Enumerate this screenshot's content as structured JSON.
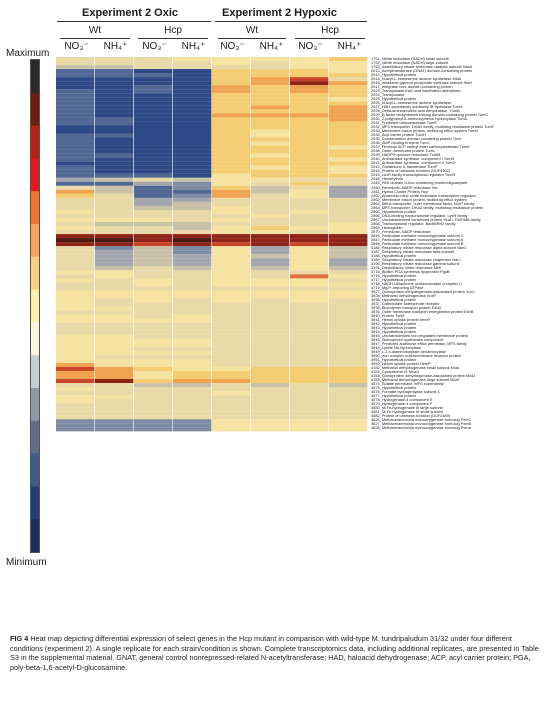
{
  "header": {
    "oxic_title": "Experiment 2 Oxic",
    "hypoxic_title": "Experiment 2 Hypoxic",
    "groups": [
      "Wt",
      "Hcp",
      "Wt",
      "Hcp"
    ],
    "conditions": [
      "NO₃⁻",
      "NH₄⁺",
      "NO₃⁻",
      "NH₄⁺",
      "NO₃⁻",
      "NH₄⁺",
      "NO₃⁻",
      "NH₄⁺"
    ]
  },
  "scale": {
    "max_label": "Maximum",
    "min_label": "Minimum",
    "colors": [
      "#2a2a2a",
      "#6b1f0f",
      "#b8230f",
      "#e31a1c",
      "#f4762e",
      "#f7a35c",
      "#fad27e",
      "#fdf0b0",
      "#fbf5d9",
      "#c7ccd6",
      "#8f98a8",
      "#5f6f8a",
      "#3e5a8e",
      "#233e7a",
      "#1d2f5e"
    ]
  },
  "palette": [
    "#1f2f62",
    "#2d4a86",
    "#4f6994",
    "#7c8aa3",
    "#a4a6ae",
    "#c9c0a8",
    "#e8d9a7",
    "#f6e3a1",
    "#f4cc72",
    "#f0a452",
    "#e0703a",
    "#c9452a",
    "#8e2418",
    "#4a1a10"
  ],
  "genes": [
    "1751_Nitrite reductase (NADH) small subunit",
    "1752_Nitrite reductase (NADH) large subunit",
    "1753_Assimilatory nitrate reductase catalytic subunit NasA",
    "2012_Acetyltransferase (GNAT) domain-containing protein",
    "2013_Hypothetical protein",
    "2014_N-acyl-L-homoserine lactone synthetase MbaI",
    "2016_Imidazole glycerol phosphate synthase subunit HisH",
    "2017_Integrase core domain-containing protein",
    "2023_Transposase InsO and inactivated derivatives",
    "2024_Transposase",
    "2025_Hypothetical protein",
    "2026_N-acyl-L-homoserine lactone synthetase",
    "2027_HAD-superfamily subfamily IB hydrolase TumA",
    "2028_Delta-aminolevulinic acid dehydratase, TumB",
    "2029_A-factor biosynthesis hotdog domain-containing protein TumC",
    "2030_2-polyprenyl-6-methoxyphenol hydroxylase TumD",
    "2031_Predicted oxidoreductase TumE",
    "2032_MFS transporter, DHA2 family, multidrug resistance protein TumF",
    "2033_Membrane fusion protein, multidrug efflux system TumG",
    "2034_Acyl carrier protein TumH",
    "2035_Condensation domain-containing protein TumI",
    "2036_AMP-binding enzyme TumJ",
    "2037_Pimeloyl-ACP methyl ester carboxylesterase TumK",
    "2038_Outer membrane protein TumL",
    "2039_NADPH quinone reductase TumM",
    "2040_Anthranilate synthase, component I TumN",
    "2041_Anthranilate synthase, component II TumO",
    "2042_Glutathione S-transferase TumP",
    "2043_Protein of unknown function (DUF4902)",
    "2044_LuxR family transcriptional regulator TumR",
    "2448_Hemerythrin",
    "2449_PAS domain S-box-containing protein/diguanylate",
    "2450_Ferredoxin-NADP reductase Hcr",
    "2451_Hybrid Cluster Protein Hcp",
    "2452_Anaerobic nitric oxide reductase transcription regulator",
    "2562_Membrane fusion protein, multidrug efflux system",
    "2563_Efflux transporter, outer membrane factor NodT family",
    "2564_MFS transporter, DHA2 family, multidrug resistance protein",
    "2565_Hypothetical protein",
    "2566_DNA-binding transcriptional regulator, LysR family",
    "2567_Uncharacterized conserved protein YeaO, DUF488 family",
    "2568_Transcriptional regulator, BadM/Rrf2 family",
    "2569_Hemoglobin",
    "2570_Ferredoxin-NADP reductase",
    "2846_Particulate methane monooxygenase subunit C",
    "2847_Particulate methane monooxygenase subunit A",
    "2848_Particulate methane monooxygenase subunit B",
    "3186_Respiratory nitrate reductase alpha subunit NarG",
    "3187_Respiratory nitrate reductase beta subunit",
    "3188_Hypothetical protein",
    "3189_Respiratory nitrate reductase chaperone NarJ",
    "3190_Respiratory nitrate reductase gamma subunit",
    "3191_Dissimilatory nitrite reductase NirK",
    "3715_Biofilm PGA synthesis lipoprotein PgaB",
    "3716_Hypothetical protein",
    "3717_Hypothetical protein",
    "3718_NADH-Ubiquinone oxidoreductase (complex I)",
    "3719_Mg2+-importing ATPase",
    "3927_Quinoprotein dehydrogenase-associated protein XoxJ",
    "3928_Methanol dehydrogenase XoxF",
    "3936_Hypothetical protein",
    "3937_Catecholate siderophore receptor",
    "3938_Biopolymer transport protein ExbD",
    "3939_Outer membrane transport energization protein ExbB",
    "3940_Protein TonB",
    "3941_Hemin uptake protein hemP",
    "3942_Hypothetical protein",
    "3943_Hypothetical protein",
    "3944_Hypothetical protein",
    "3945_Uncharacterized iron-regulated membrane protein",
    "3946_Siderophore synthetase component",
    "3947_Predicted arabinose efflux permease, MFS family",
    "3948_Lysine N6-hydroxylase",
    "3949_L-2,4-diaminobutyrate decarboxylase",
    "3950_Iron complex outermembrane receptor protein",
    "3951_Hypothetical protein",
    "3952_Hemin uptake protein HemP",
    "4152_Methanol dehydrogenase small subunit MxaI",
    "4153_Cytochrome cL MxaG",
    "4154_Quinoprotein dehydrogenase-associated protein MxaJ",
    "4155_Methanol dehydrogenase large subunit MxaF",
    "4574_Sulfate permease, MFS superfamily",
    "4575_Hypothetical protein",
    "4576_Formate hydrogenlyase subunit 4",
    "4577_Hypothetical protein",
    "4578_Hydrogenase-4 component E",
    "4579_Hydrogenase-4 component F",
    "4580_Ni,Fe-hydrogenase III large subunit",
    "4581_Ni,Fe-hydrogenase III small subunit",
    "4582_Protein of unknown function (DUF2480)",
    "4626_Methane/ammonia monooxygenase homolog PxmC",
    "4627_Methane/ammonia monooxygenase homolog PxmB",
    "4628_Methane/ammonia monooxygenase homolog PxmA"
  ],
  "heat_levels": [
    [
      6,
      6,
      6,
      7,
      7,
      7,
      7,
      8
    ],
    [
      6,
      6,
      6,
      6,
      7,
      6,
      7,
      7
    ],
    [
      5,
      5,
      6,
      6,
      6,
      6,
      7,
      7
    ],
    [
      2,
      2,
      1,
      1,
      8,
      8,
      8,
      7
    ],
    [
      2,
      2,
      2,
      1,
      8,
      8,
      8,
      8
    ],
    [
      1,
      1,
      1,
      1,
      8,
      9,
      11,
      6
    ],
    [
      1,
      1,
      1,
      1,
      8,
      9,
      12,
      9
    ],
    [
      1,
      1,
      2,
      1,
      9,
      8,
      9,
      8
    ],
    [
      2,
      1,
      2,
      1,
      9,
      8,
      9,
      8
    ],
    [
      2,
      1,
      1,
      1,
      8,
      8,
      8,
      8
    ],
    [
      2,
      1,
      1,
      1,
      8,
      8,
      8,
      7
    ],
    [
      2,
      1,
      1,
      1,
      8,
      8,
      8,
      8
    ],
    [
      2,
      1,
      1,
      1,
      8,
      9,
      8,
      9
    ],
    [
      2,
      1,
      1,
      1,
      8,
      8,
      8,
      9
    ],
    [
      2,
      1,
      1,
      1,
      9,
      9,
      9,
      9
    ],
    [
      2,
      2,
      1,
      1,
      8,
      8,
      8,
      9
    ],
    [
      2,
      2,
      1,
      1,
      8,
      8,
      8,
      8
    ],
    [
      1,
      1,
      1,
      1,
      8,
      8,
      8,
      8
    ],
    [
      1,
      1,
      1,
      1,
      8,
      7,
      8,
      8
    ],
    [
      2,
      2,
      1,
      1,
      8,
      7,
      8,
      8
    ],
    [
      2,
      1,
      1,
      1,
      8,
      8,
      8,
      8
    ],
    [
      2,
      1,
      1,
      1,
      8,
      7,
      8,
      8
    ],
    [
      2,
      1,
      1,
      1,
      8,
      8,
      8,
      7
    ],
    [
      2,
      1,
      1,
      1,
      8,
      8,
      8,
      8
    ],
    [
      2,
      2,
      1,
      1,
      8,
      7,
      8,
      8
    ],
    [
      2,
      1,
      1,
      1,
      8,
      8,
      8,
      7
    ],
    [
      1,
      1,
      1,
      1,
      8,
      8,
      8,
      8
    ],
    [
      2,
      1,
      1,
      1,
      8,
      7,
      8,
      7
    ],
    [
      2,
      1,
      1,
      1,
      8,
      8,
      8,
      7
    ],
    [
      2,
      2,
      2,
      1,
      7,
      8,
      8,
      8
    ],
    [
      4,
      5,
      6,
      5,
      7,
      7,
      6,
      6
    ],
    [
      2,
      2,
      4,
      3,
      7,
      6,
      8,
      6
    ],
    [
      6,
      5,
      2,
      3,
      8,
      5,
      6,
      4
    ],
    [
      9,
      5,
      2,
      2,
      9,
      5,
      7,
      4
    ],
    [
      8,
      6,
      2,
      3,
      9,
      6,
      7,
      4
    ],
    [
      6,
      6,
      4,
      4,
      6,
      6,
      6,
      6
    ],
    [
      6,
      6,
      4,
      5,
      6,
      6,
      6,
      6
    ],
    [
      6,
      6,
      5,
      5,
      7,
      6,
      6,
      6
    ],
    [
      7,
      6,
      6,
      6,
      7,
      6,
      7,
      6
    ],
    [
      6,
      6,
      6,
      6,
      6,
      7,
      6,
      6
    ],
    [
      7,
      7,
      7,
      6,
      7,
      6,
      6,
      6
    ],
    [
      6,
      5,
      5,
      5,
      6,
      6,
      6,
      7
    ],
    [
      7,
      6,
      6,
      5,
      7,
      8,
      7,
      7
    ],
    [
      6,
      6,
      6,
      6,
      7,
      7,
      6,
      7
    ],
    [
      12,
      12,
      12,
      12,
      12,
      12,
      12,
      12
    ],
    [
      13,
      13,
      12,
      13,
      12,
      12,
      12,
      12
    ],
    [
      12,
      12,
      11,
      12,
      11,
      12,
      11,
      12
    ],
    [
      6,
      3,
      5,
      3,
      7,
      4,
      7,
      5
    ],
    [
      6,
      4,
      5,
      3,
      7,
      4,
      7,
      5
    ],
    [
      6,
      4,
      5,
      4,
      7,
      5,
      7,
      5
    ],
    [
      6,
      4,
      5,
      4,
      7,
      4,
      7,
      4
    ],
    [
      6,
      4,
      5,
      4,
      7,
      4,
      7,
      4
    ],
    [
      6,
      5,
      6,
      5,
      7,
      5,
      7,
      5
    ],
    [
      7,
      7,
      6,
      6,
      7,
      6,
      6,
      6
    ],
    [
      6,
      7,
      6,
      6,
      7,
      6,
      10,
      7
    ],
    [
      7,
      6,
      7,
      6,
      7,
      7,
      7,
      6
    ],
    [
      6,
      6,
      7,
      6,
      7,
      7,
      7,
      7
    ],
    [
      6,
      6,
      6,
      6,
      6,
      6,
      6,
      6
    ],
    [
      7,
      7,
      7,
      7,
      7,
      7,
      7,
      7
    ],
    [
      7,
      7,
      7,
      7,
      7,
      7,
      7,
      7
    ],
    [
      7,
      6,
      7,
      6,
      7,
      6,
      7,
      6
    ],
    [
      7,
      6,
      6,
      6,
      6,
      6,
      6,
      6
    ],
    [
      7,
      7,
      6,
      6,
      6,
      6,
      6,
      6
    ],
    [
      6,
      6,
      6,
      6,
      6,
      6,
      6,
      6
    ],
    [
      7,
      7,
      6,
      7,
      6,
      6,
      6,
      6
    ],
    [
      7,
      7,
      7,
      7,
      6,
      6,
      6,
      6
    ],
    [
      6,
      6,
      6,
      6,
      6,
      6,
      6,
      6
    ],
    [
      6,
      6,
      6,
      6,
      6,
      6,
      6,
      6
    ],
    [
      6,
      6,
      6,
      6,
      6,
      6,
      6,
      6
    ],
    [
      7,
      7,
      6,
      6,
      6,
      6,
      6,
      6
    ],
    [
      7,
      7,
      7,
      7,
      6,
      6,
      6,
      6
    ],
    [
      7,
      7,
      7,
      7,
      6,
      6,
      6,
      6
    ],
    [
      7,
      7,
      6,
      6,
      6,
      6,
      6,
      6
    ],
    [
      7,
      7,
      7,
      7,
      6,
      6,
      6,
      6
    ],
    [
      7,
      6,
      6,
      6,
      6,
      6,
      6,
      6
    ],
    [
      7,
      7,
      7,
      7,
      6,
      6,
      6,
      6
    ],
    [
      9,
      7,
      7,
      7,
      6,
      6,
      6,
      6
    ],
    [
      11,
      9,
      8,
      7,
      7,
      8,
      8,
      8
    ],
    [
      9,
      9,
      7,
      8,
      8,
      8,
      8,
      8
    ],
    [
      9,
      9,
      7,
      8,
      8,
      8,
      8,
      8
    ],
    [
      11,
      12,
      8,
      9,
      9,
      8,
      8,
      8
    ],
    [
      6,
      6,
      5,
      5,
      6,
      5,
      6,
      5
    ],
    [
      7,
      6,
      6,
      6,
      6,
      6,
      6,
      6
    ],
    [
      6,
      6,
      6,
      6,
      7,
      6,
      6,
      6
    ],
    [
      7,
      7,
      6,
      6,
      6,
      6,
      6,
      6
    ],
    [
      7,
      6,
      6,
      6,
      6,
      6,
      6,
      6
    ],
    [
      6,
      6,
      6,
      6,
      6,
      6,
      6,
      6
    ],
    [
      6,
      6,
      6,
      6,
      6,
      6,
      6,
      6
    ],
    [
      6,
      6,
      6,
      6,
      6,
      6,
      6,
      6
    ],
    [
      6,
      6,
      6,
      6,
      6,
      6,
      6,
      6
    ],
    [
      3,
      3,
      3,
      3,
      7,
      7,
      7,
      7
    ],
    [
      3,
      3,
      3,
      3,
      7,
      7,
      7,
      7
    ],
    [
      3,
      3,
      3,
      3,
      7,
      7,
      7,
      7
    ]
  ],
  "caption": {
    "label": "FIG 4",
    "text": "Heat map depicting differential expression of select genes in the Hcp mutant in comparison with wild-type M. tundripaludum 31/32 under four different conditions (experiment 2). A single replicate for each strain/condition is shown. Complete transcriptomics data, including additional replicates, are presented in Table S3 in the supplemental material. GNAT, general control nonrepressed-related N-acetyltransferase; HAD, haloacid dehydrogenase; ACP, acyl carrier protein; PGA, poly-beta-1,6-acetyl-D-glucosamine."
  }
}
